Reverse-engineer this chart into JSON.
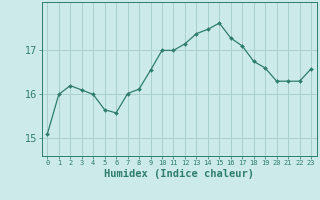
{
  "x": [
    0,
    1,
    2,
    3,
    4,
    5,
    6,
    7,
    8,
    9,
    10,
    11,
    12,
    13,
    14,
    15,
    16,
    17,
    18,
    19,
    20,
    21,
    22,
    23
  ],
  "y": [
    15.1,
    16.0,
    16.2,
    16.1,
    16.0,
    15.65,
    15.58,
    16.02,
    16.12,
    16.55,
    17.0,
    17.0,
    17.15,
    17.38,
    17.48,
    17.62,
    17.28,
    17.1,
    16.75,
    16.6,
    16.3,
    16.3,
    16.3,
    16.58
  ],
  "line_color": "#2e7d6e",
  "marker": "D",
  "marker_size": 2.0,
  "bg_color": "#cceaea",
  "grid_color": "#aacece",
  "axis_color": "#2e7d6e",
  "tick_color": "#2e7d6e",
  "xlabel": "Humidex (Indice chaleur)",
  "xlabel_fontsize": 7.5,
  "ytick_fontsize": 7,
  "xtick_fontsize": 5.0,
  "yticks": [
    15,
    16,
    17
  ],
  "ylim": [
    14.6,
    18.1
  ],
  "xlim": [
    -0.5,
    23.5
  ]
}
